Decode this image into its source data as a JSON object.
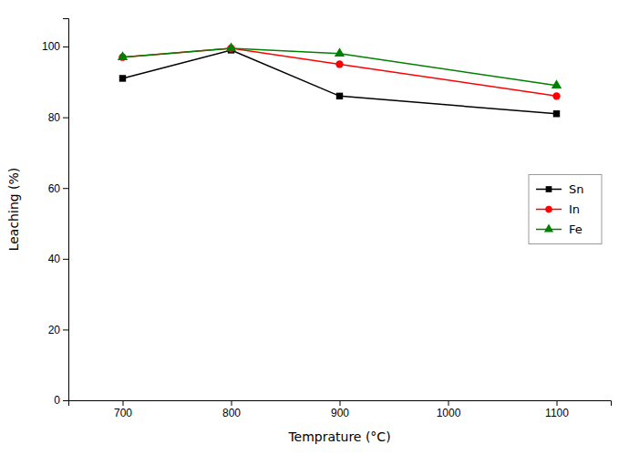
{
  "chart_data": {
    "type": "line",
    "x": [
      700,
      800,
      900,
      1100
    ],
    "series": [
      {
        "name": "Sn",
        "color": "#000000",
        "marker": "square",
        "values": [
          91,
          99,
          86,
          81
        ]
      },
      {
        "name": "In",
        "color": "#ff0000",
        "marker": "circle",
        "values": [
          97,
          99.5,
          95,
          86
        ]
      },
      {
        "name": "Fe",
        "color": "#008000",
        "marker": "triangle",
        "values": [
          97,
          99.5,
          98,
          89
        ]
      }
    ],
    "xlabel": "Temprature (°C)",
    "ylabel": "Leaching (%)",
    "xlim": [
      650,
      1150
    ],
    "ylim": [
      0,
      108
    ],
    "xticks": [
      700,
      800,
      900,
      1000,
      1100
    ],
    "yticks": [
      0,
      20,
      40,
      60,
      80,
      100
    ],
    "grid": false,
    "legend": "right"
  }
}
